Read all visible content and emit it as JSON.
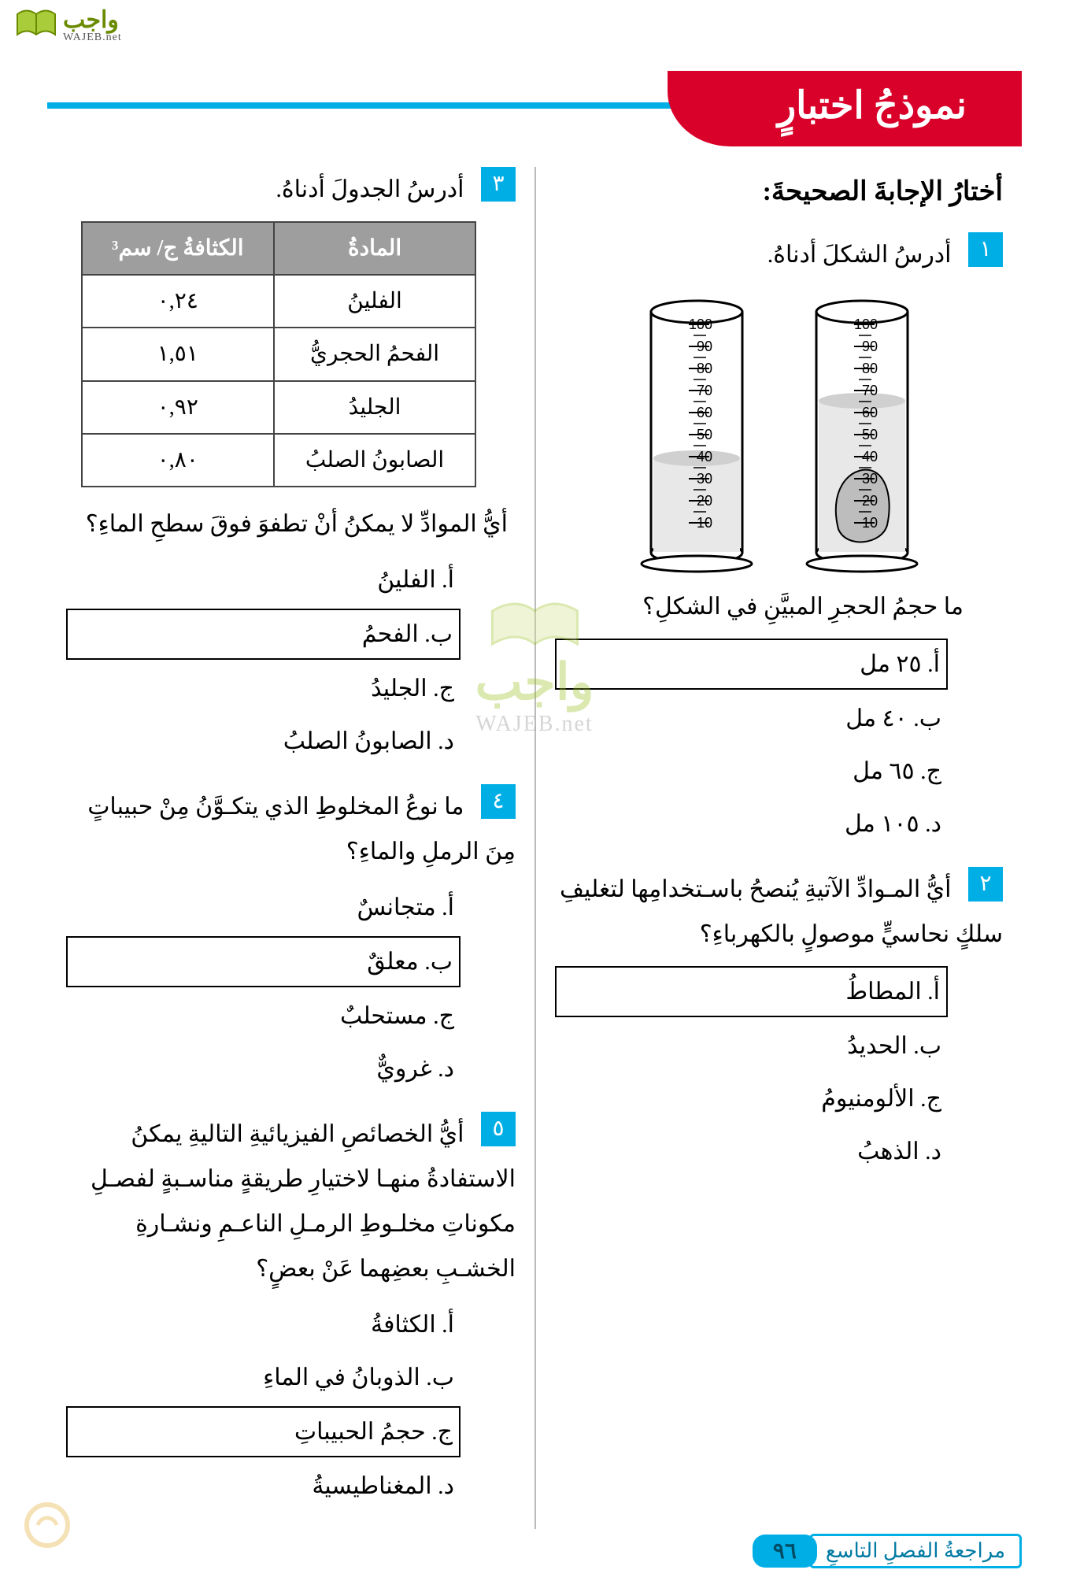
{
  "logo": {
    "ar": "واجب",
    "en": "WAJEB.net"
  },
  "header": "نموذجُ اختبارٍ",
  "section_title": "أختارُ الإجابةَ الصحيحةَ:",
  "watermark": {
    "ar": "واجب",
    "en": "WAJEB.net"
  },
  "q1": {
    "num": "١",
    "text": "أدرسُ الشكلَ أدناهُ.",
    "prompt": "ما حجمُ الحجرِ المبيَّنِ في الشكلِ؟",
    "answers": {
      "a": "أ. ٢٥ مل",
      "b": "ب. ٤٠ مل",
      "c": "ج. ٦٥ مل",
      "d": "د. ١٠٥ مل"
    },
    "cylinder": {
      "ticks": [
        100,
        90,
        80,
        70,
        60,
        50,
        40,
        30,
        20,
        10
      ],
      "left_level": 65,
      "right_level": 40,
      "stroke": "#000000",
      "fill_water": "#e8e8e8",
      "fill_rock": "#bdbdbd"
    }
  },
  "q2": {
    "num": "٢",
    "text": "أيُّ المـوادِّ الآتيةِ يُنصحُ باسـتخدامِها لتغليفِ سلكٍ نحاسيٍّ موصولٍ بالكهرباءِ؟",
    "answers": {
      "a": "أ. المطاطُ",
      "b": "ب. الحديدُ",
      "c": "ج. الألومنيومُ",
      "d": "د. الذهبُ"
    }
  },
  "q3": {
    "num": "٣",
    "text": "أدرسُ الجدولَ أدناهُ.",
    "table": {
      "head_material": "المادةُ",
      "head_density": "الكثافةُ ج/ سم³",
      "rows": [
        {
          "m": "الفلينُ",
          "d": "٠,٢٤"
        },
        {
          "m": "الفحمُ الحجريُّ",
          "d": "١,٥١"
        },
        {
          "m": "الجليدُ",
          "d": "٠,٩٢"
        },
        {
          "m": "الصابونُ الصلبُ",
          "d": "٠,٨٠"
        }
      ],
      "header_bg": "#9e9e9e",
      "border": "#444444"
    },
    "prompt": "أيُّ الموادِّ لا يمكنُ أنْ تطفوَ فوقَ سطحِ الماءِ؟",
    "answers": {
      "a": "أ. الفلينُ",
      "b": "ب. الفحمُ",
      "c": "ج. الجليدُ",
      "d": "د. الصابونُ الصلبُ"
    }
  },
  "q4": {
    "num": "٤",
    "text": "ما نوعُ المخلوطِ الذي يتكـوَّنُ مِنْ حبيباتٍ مِنَ الرملِ والماءِ؟",
    "answers": {
      "a": "أ. متجانسٌ",
      "b": "ب. معلقٌ",
      "c": "ج. مستحلبٌ",
      "d": "د. غرويٌّ"
    }
  },
  "q5": {
    "num": "٥",
    "text": "أيُّ الخصائصِ الفيزيائيةِ التاليةِ يمكنُ الاستفادةُ منهـا لاختيارِ طريقةٍ مناسـبةٍ لفصـلِ مكوناتِ مخلـوطِ الرمـلِ الناعـمِ ونشـارةِ الخشـبِ بعضِهما عَنْ بعضٍ؟",
    "answers": {
      "a": "أ. الكثافةُ",
      "b": "ب. الذوبانُ في الماءِ",
      "c": "ج. حجمُ الحبيباتِ",
      "d": "د. المغناطيسيةُ"
    }
  },
  "footer": {
    "label": "مراجعةُ الفصلِ التاسعِ",
    "page": "٩٦"
  },
  "colors": {
    "cyan": "#00aee6",
    "red": "#d9002a",
    "table_header": "#9e9e9e"
  }
}
